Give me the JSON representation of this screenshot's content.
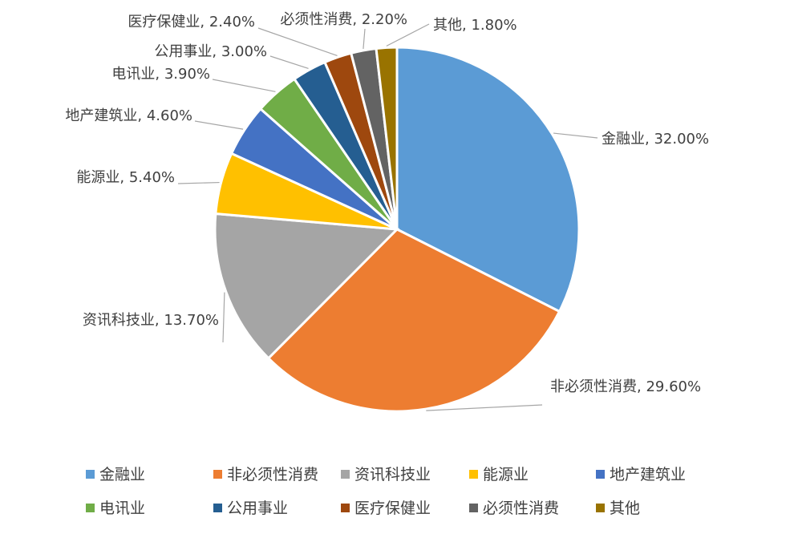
{
  "chart_data": {
    "type": "pie",
    "title": "",
    "slices": [
      {
        "name": "金融业",
        "value": 32.0,
        "label": "金融业, 32.00%",
        "color": "#5B9BD5"
      },
      {
        "name": "非必须性消费",
        "value": 29.6,
        "label": "非必须性消费, 29.60%",
        "color": "#ED7D31"
      },
      {
        "name": "资讯科技业",
        "value": 13.7,
        "label": "资讯科技业, 13.70%",
        "color": "#A5A5A5"
      },
      {
        "name": "能源业",
        "value": 5.4,
        "label": "能源业, 5.40%",
        "color": "#FFC000"
      },
      {
        "name": "地产建筑业",
        "value": 4.6,
        "label": "地产建筑业, 4.60%",
        "color": "#4472C4"
      },
      {
        "name": "电讯业",
        "value": 3.9,
        "label": "电讯业, 3.90%",
        "color": "#70AD47"
      },
      {
        "name": "公用事业",
        "value": 3.0,
        "label": "公用事业, 3.00%",
        "color": "#255E91"
      },
      {
        "name": "医疗保健业",
        "value": 2.4,
        "label": "医疗保健业, 2.40%",
        "color": "#9E480E"
      },
      {
        "name": "必须性消费",
        "value": 2.2,
        "label": "必须性消费, 2.20%",
        "color": "#636363"
      },
      {
        "name": "其他",
        "value": 1.8,
        "label": "其他, 1.80%",
        "color": "#997300"
      }
    ],
    "legend": {
      "position": "bottom",
      "entries": [
        "金融业",
        "非必须性消费",
        "资讯科技业",
        "能源业",
        "地产建筑业",
        "电讯业",
        "公用事业",
        "医疗保健业",
        "必须性消费",
        "其他"
      ]
    }
  }
}
